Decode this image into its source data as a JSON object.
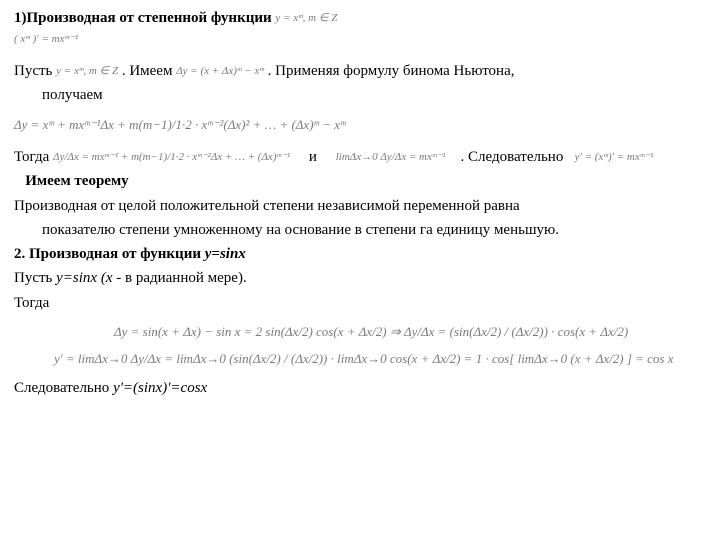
{
  "doc": {
    "title_prefix": "1)Производная от степенной функции ",
    "title_formula": "y = xᵐ, m ∈ Z",
    "line2": "( xᵐ )′ = mxᵐ⁻¹",
    "p1_w1": "Пусть ",
    "p1_f1": "y = xᵐ, m ∈ Z",
    "p1_w2": " . Имеем ",
    "p1_f2": "Δy = (x + Δx)ᵐ − xᵐ",
    "p1_w3": " . Применяя формулу бинома Ньютона,",
    "p1_cont": "получаем",
    "formula1": "Δy = xᵐ + mxᵐ⁻¹Δx + m(m−1)/1·2 · xᵐ⁻²(Δx)² + … + (Δx)ᵐ − xᵐ",
    "p2_w1": "Тогда",
    "p2_f1": "Δy/Δx = mxᵐ⁻¹ + m(m−1)/1·2 · xᵐ⁻²Δx + … + (Δx)ᵐ⁻¹",
    "p2_w2": "и",
    "p2_f2": "limΔx→0 Δy/Δx = mxᵐ⁻¹",
    "p2_w3": ". Следовательно",
    "p2_f3": "y′ = (xᵐ)′ = mxᵐ⁻¹",
    "theorem": "Имеем теорему",
    "theorem_body1": "Производная от целой положительной степени независимой переменной равна",
    "theorem_body2": "показателю степени умноженному на основание в степени га единицу меньшую.",
    "h2": "2. Производная от функции ",
    "h2_f": "y=sinx",
    "p3": "Пусть ",
    "p3_f": "y=sinx (x",
    "p3_b": " -  в радианной мере).",
    "p4": " Тогда",
    "formula2a": "Δy = sin(x + Δx) − sin x = 2 sin(Δx/2) cos(x + Δx/2) ⇒ Δy/Δx = (sin(Δx/2) / (Δx/2)) · cos(x + Δx/2)",
    "formula2b": "y′ = limΔx→0 Δy/Δx = limΔx→0 (sin(Δx/2) / (Δx/2)) · limΔx→0 cos(x + Δx/2) = 1 · cos[ limΔx→0 (x + Δx/2) ] = cos x",
    "conc": "Следовательно ",
    "conc_f": "y'=(sinx)'=cosx"
  }
}
